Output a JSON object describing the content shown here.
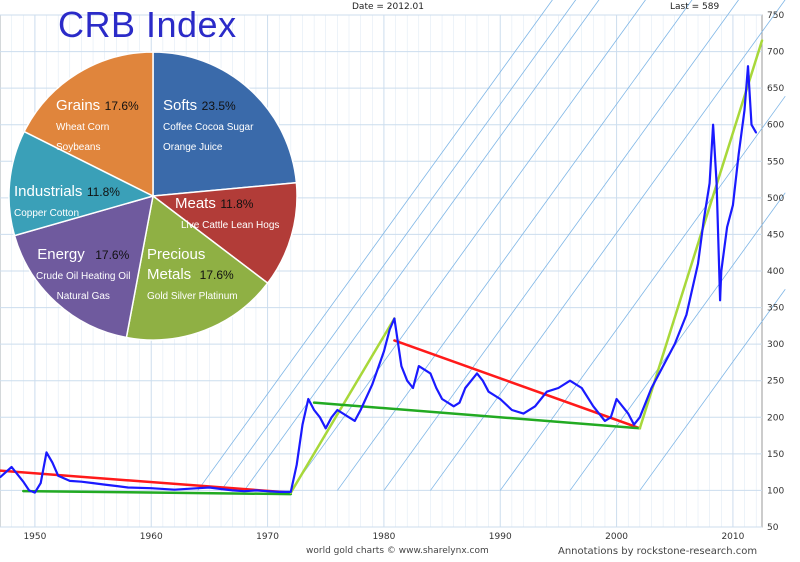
{
  "header": {
    "date": "Date = 2012.01",
    "last": "Last = 589"
  },
  "title": "CRB Index",
  "footer": {
    "source": "world gold charts © www.sharelynx.com",
    "annotations": "Annotations by rockstone-research.com"
  },
  "colors": {
    "line": "#1a1aff",
    "red_trend": "#ff1a1a",
    "green_trend": "#22aa22",
    "lime_trend": "#a8d83a",
    "channel": "#7fb6e6",
    "grid": "#ccddee",
    "softs": "#3a6aaa",
    "meats": "#b23c38",
    "precious": "#8fb044",
    "energy": "#6f5a9e",
    "industrials": "#3aa0b8",
    "grains": "#e0853c"
  },
  "pie": {
    "slices": [
      {
        "name": "Softs",
        "pct": "23.5%",
        "value": 23.5,
        "items": [
          "Coffee  Cocoa  Sugar",
          "Orange Juice"
        ]
      },
      {
        "name": "Meats",
        "pct": "11.8%",
        "value": 11.8,
        "items": [
          "Live Cattle  Lean Hogs"
        ]
      },
      {
        "name": "Precious Metals",
        "name_lines": [
          "Precious",
          "Metals"
        ],
        "pct": "17.6%",
        "value": 17.6,
        "items": [
          "Gold  Silver  Platinum"
        ]
      },
      {
        "name": "Energy",
        "pct": "17.6%",
        "value": 17.6,
        "items": [
          "Crude Oil  Heating Oil",
          "Natural Gas"
        ]
      },
      {
        "name": "Industrials",
        "pct": "11.8%",
        "value": 11.8,
        "items": [
          "Copper   Cotton"
        ]
      },
      {
        "name": "Grains",
        "pct": "17.6%",
        "value": 17.6,
        "items": [
          "Wheat  Corn",
          "Soybeans"
        ]
      }
    ]
  },
  "chart_data": [
    {
      "type": "line",
      "title": "CRB Index",
      "xlim": [
        1947,
        2012.5
      ],
      "ylim": [
        50,
        750
      ],
      "x_ticks": [
        1950,
        1960,
        1970,
        1980,
        1990,
        2000,
        2010
      ],
      "y_ticks": [
        50,
        100,
        150,
        200,
        250,
        300,
        350,
        400,
        450,
        500,
        550,
        600,
        650,
        700,
        750
      ],
      "grid": true,
      "y_axis_side": "right",
      "series": [
        {
          "x": [
            1947,
            1948,
            1949,
            1949.5,
            1950,
            1950.5,
            1951,
            1951.5,
            1952,
            1953,
            1954,
            1955,
            1956,
            1957,
            1958,
            1960,
            1962,
            1964,
            1965,
            1966,
            1967,
            1968,
            1969,
            1970,
            1971,
            1972,
            1972.5,
            1973,
            1973.5,
            1974,
            1974.5,
            1975,
            1975.5,
            1976,
            1977,
            1977.5,
            1978,
            1979,
            1980,
            1980.5,
            1980.9,
            1981.5,
            1982,
            1982.5,
            1983,
            1984,
            1984.5,
            1985,
            1986,
            1986.5,
            1987,
            1988,
            1988.5,
            1989,
            1990,
            1991,
            1992,
            1993,
            1994,
            1995,
            1996,
            1997,
            1998,
            1999,
            1999.5,
            2000,
            2001,
            2001.5,
            2002,
            2003,
            2004,
            2005,
            2006,
            2007,
            2007.5,
            2008,
            2008.3,
            2008.6,
            2008.9,
            2009,
            2009.5,
            2010,
            2010.5,
            2011,
            2011.3,
            2011.6,
            2012
          ],
          "y": [
            118,
            132,
            112,
            100,
            97,
            110,
            152,
            138,
            120,
            113,
            112,
            110,
            108,
            106,
            104,
            103,
            101,
            103,
            104,
            102,
            100,
            99,
            100,
            99,
            98,
            98,
            135,
            190,
            225,
            210,
            200,
            185,
            200,
            210,
            200,
            195,
            210,
            245,
            290,
            320,
            335,
            270,
            250,
            240,
            270,
            260,
            240,
            225,
            215,
            220,
            240,
            260,
            250,
            235,
            225,
            210,
            205,
            215,
            235,
            240,
            250,
            240,
            215,
            195,
            200,
            225,
            205,
            190,
            200,
            240,
            270,
            300,
            340,
            410,
            470,
            520,
            600,
            520,
            360,
            400,
            460,
            490,
            560,
            620,
            680,
            600,
            589
          ]
        },
        {
          "name": "red downtrend 1947-1972",
          "x": [
            1947,
            1972
          ],
          "y": [
            127,
            97
          ]
        },
        {
          "name": "green support 1949-1972",
          "x": [
            1949,
            1972
          ],
          "y": [
            99,
            95
          ]
        },
        {
          "name": "lime rally 1972-1980",
          "x": [
            1972,
            1980.9
          ],
          "y": [
            97,
            335
          ]
        },
        {
          "name": "red downtrend 1980-2002",
          "x": [
            1980.9,
            2002
          ],
          "y": [
            305,
            185
          ]
        },
        {
          "name": "green support 1974-2002",
          "x": [
            1974,
            2002
          ],
          "y": [
            220,
            185
          ]
        },
        {
          "name": "lime uptrend 2002-2012",
          "x": [
            2002,
            2012.5
          ],
          "y": [
            185,
            715
          ]
        }
      ]
    },
    {
      "type": "pie",
      "title": "",
      "categories": [
        "Softs",
        "Meats",
        "Precious Metals",
        "Energy",
        "Industrials",
        "Grains"
      ],
      "values": [
        23.5,
        11.8,
        17.6,
        17.6,
        11.8,
        17.6
      ]
    }
  ]
}
